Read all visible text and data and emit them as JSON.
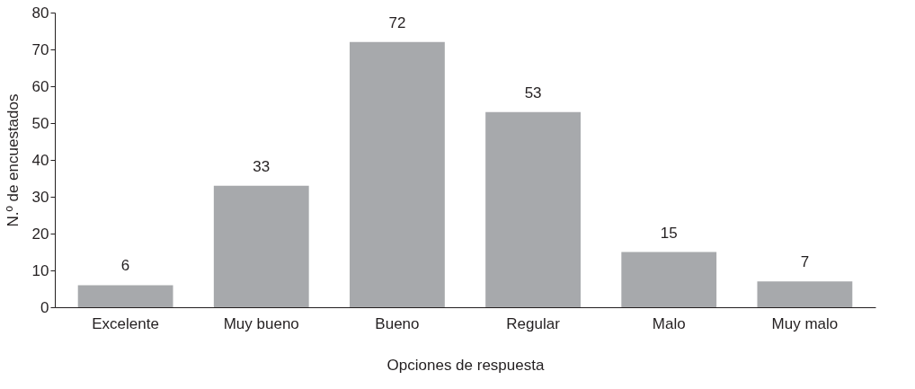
{
  "chart_data": {
    "type": "bar",
    "xlabel": "Opciones de respuesta",
    "ylabel": "N.º de encuestados",
    "categories": [
      "Excelente",
      "Muy bueno",
      "Bueno",
      "Regular",
      "Malo",
      "Muy malo"
    ],
    "values": [
      6,
      33,
      72,
      53,
      15,
      7
    ],
    "color": "#a7a9ac",
    "ylim": [
      0,
      80
    ],
    "yticks": [
      0,
      10,
      20,
      30,
      40,
      50,
      60,
      70,
      80
    ],
    "grid": false,
    "data_labels": true
  }
}
